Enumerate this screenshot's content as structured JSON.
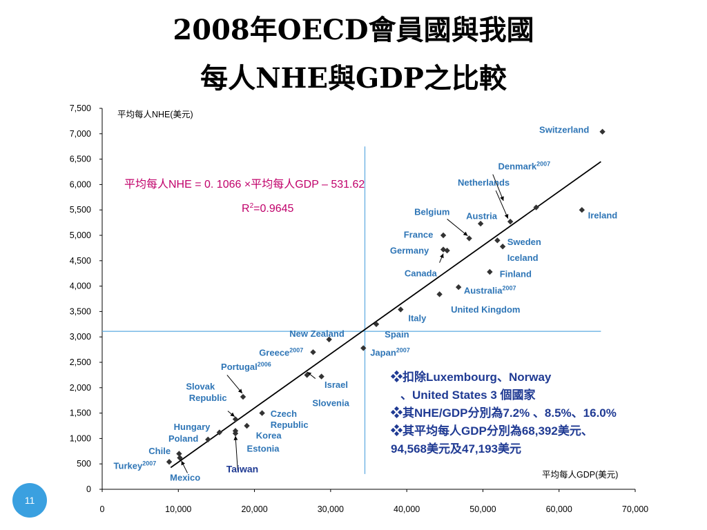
{
  "slide": {
    "title_line1": "2008年OECD會員國與我國",
    "title_line2": "每人NHE與GDP之比較",
    "page_number": "11"
  },
  "chart_data": {
    "type": "scatter",
    "xlabel": "平均每人GDP(美元)",
    "ylabel": "平均每人NHE(美元)",
    "xlim": [
      0,
      70000
    ],
    "ylim": [
      0,
      7500
    ],
    "x_ticks": [
      "0",
      "10,000",
      "20,000",
      "30,000",
      "40,000",
      "50,000",
      "60,000",
      "70,000"
    ],
    "y_ticks": [
      "0",
      "500",
      "1,000",
      "1,500",
      "2,000",
      "2,500",
      "3,000",
      "3,500",
      "4,000",
      "4,500",
      "5,000",
      "5,500",
      "6,000",
      "6,500",
      "7,000",
      "7,500"
    ],
    "x_tick_values": [
      0,
      10000,
      20000,
      30000,
      40000,
      50000,
      60000,
      70000
    ],
    "y_tick_values": [
      0,
      500,
      1000,
      1500,
      2000,
      2500,
      3000,
      3500,
      4000,
      4500,
      5000,
      5500,
      6000,
      6500,
      7000,
      7500
    ],
    "grid": false,
    "regression": {
      "equation": "平均每人NHE = 0. 1066 ×平均每人GDP – 531.62",
      "r2_base": "R",
      "r2_sup": "2",
      "r2_rest": "=0.9645",
      "slope": 0.1066,
      "intercept": -531.62,
      "x_range": [
        9000,
        65500
      ]
    },
    "reference_lines": {
      "x": 34500,
      "y": 3110
    },
    "points": [
      {
        "x": 65700,
        "y": 7040
      },
      {
        "x": 57000,
        "y": 5550
      },
      {
        "x": 63000,
        "y": 5500
      },
      {
        "x": 53600,
        "y": 5270
      },
      {
        "x": 49700,
        "y": 5230
      },
      {
        "x": 48200,
        "y": 4940
      },
      {
        "x": 44800,
        "y": 5000
      },
      {
        "x": 51900,
        "y": 4900
      },
      {
        "x": 52600,
        "y": 4780
      },
      {
        "x": 44800,
        "y": 4720
      },
      {
        "x": 45300,
        "y": 4700
      },
      {
        "x": 50900,
        "y": 4280
      },
      {
        "x": 46800,
        "y": 3980
      },
      {
        "x": 44300,
        "y": 3840
      },
      {
        "x": 39200,
        "y": 3540
      },
      {
        "x": 36000,
        "y": 3250
      },
      {
        "x": 29800,
        "y": 2950
      },
      {
        "x": 34300,
        "y": 2780
      },
      {
        "x": 27700,
        "y": 2700
      },
      {
        "x": 26900,
        "y": 2250
      },
      {
        "x": 28800,
        "y": 2220
      },
      {
        "x": 18500,
        "y": 1820
      },
      {
        "x": 17500,
        "y": 1380
      },
      {
        "x": 21000,
        "y": 1500
      },
      {
        "x": 19000,
        "y": 1250
      },
      {
        "x": 15400,
        "y": 1120
      },
      {
        "x": 17500,
        "y": 1150
      },
      {
        "x": 17500,
        "y": 1100
      },
      {
        "x": 13900,
        "y": 980
      },
      {
        "x": 10100,
        "y": 700
      },
      {
        "x": 10200,
        "y": 620
      },
      {
        "x": 8800,
        "y": 540
      }
    ],
    "labels": [
      {
        "text": "Switzerland",
        "x": 57400,
        "y": 7020
      },
      {
        "text": "Denmark",
        "sup": "2007",
        "x": 52000,
        "y": 6300
      },
      {
        "text": "Netherlands",
        "x": 46700,
        "y": 5980
      },
      {
        "text": "Belgium",
        "x": 41000,
        "y": 5400
      },
      {
        "text": "Austria",
        "x": 47800,
        "y": 5320
      },
      {
        "text": "Ireland",
        "x": 63800,
        "y": 5330
      },
      {
        "text": "France",
        "x": 39600,
        "y": 4950
      },
      {
        "text": "Sweden",
        "x": 53200,
        "y": 4810
      },
      {
        "text": "Germany",
        "x": 37800,
        "y": 4640
      },
      {
        "text": "Iceland",
        "x": 53200,
        "y": 4500
      },
      {
        "text": "Canada",
        "x": 39700,
        "y": 4190
      },
      {
        "text": "Finland",
        "x": 52200,
        "y": 4180
      },
      {
        "text": "Australia",
        "sup": "2007",
        "x": 47500,
        "y": 3850
      },
      {
        "text": "United Kingdom",
        "x": 45800,
        "y": 3480
      },
      {
        "text": "Italy",
        "x": 40200,
        "y": 3310
      },
      {
        "text": "New Zealand",
        "x": 24600,
        "y": 3000
      },
      {
        "text": "Spain",
        "x": 37100,
        "y": 2990
      },
      {
        "text": "Greece",
        "sup": "2007",
        "x": 20600,
        "y": 2630
      },
      {
        "text": "Japan",
        "sup": "2007",
        "x": 35200,
        "y": 2630
      },
      {
        "text": "Portugal",
        "sup": "2006",
        "x": 15600,
        "y": 2350
      },
      {
        "text": "Israel",
        "x": 29200,
        "y": 2000
      },
      {
        "text": "Slovak",
        "x": 11000,
        "y": 1960
      },
      {
        "text": "Republic",
        "x": 11400,
        "y": 1740
      },
      {
        "text": "Slovenia",
        "x": 27600,
        "y": 1640
      },
      {
        "text": "Czech",
        "x": 22100,
        "y": 1430
      },
      {
        "text": "Republic",
        "x": 22100,
        "y": 1210
      },
      {
        "text": "Hungary",
        "x": 9400,
        "y": 1170
      },
      {
        "text": "Korea",
        "x": 20200,
        "y": 1000
      },
      {
        "text": "Poland",
        "x": 8700,
        "y": 940
      },
      {
        "text": "Estonia",
        "x": 19000,
        "y": 740
      },
      {
        "text": "Chile",
        "x": 6100,
        "y": 690
      },
      {
        "text": "Turkey",
        "sup": "2007",
        "x": 1500,
        "y": 400
      }
    ],
    "bottom_labels": [
      {
        "text": "Mexico",
        "x": 8900,
        "y": 170
      }
    ],
    "arrows": [
      {
        "from": [
          51300,
          6200
        ],
        "to": [
          52700,
          5680
        ]
      },
      {
        "from": [
          51700,
          5880
        ],
        "to": [
          53300,
          5330
        ]
      },
      {
        "from": [
          45300,
          5320
        ],
        "to": [
          48000,
          4990
        ]
      },
      {
        "from": [
          44300,
          4460
        ],
        "to": [
          44800,
          4640
        ]
      },
      {
        "from": [
          28000,
          2180
        ],
        "to": [
          26900,
          2310
        ]
      },
      {
        "from": [
          16400,
          2250
        ],
        "to": [
          18400,
          1890
        ]
      },
      {
        "from": [
          16500,
          1540
        ],
        "to": [
          17400,
          1430
        ]
      },
      {
        "from": [
          17800,
          370
        ],
        "to": [
          17500,
          1050
        ]
      },
      {
        "from": [
          11200,
          320
        ],
        "to": [
          10400,
          560
        ]
      }
    ],
    "highlight": {
      "text": "Taiwan",
      "x": 16300,
      "y": 330
    }
  },
  "notes": {
    "line1": "扣除Luxembourg、Norway",
    "line2": "、United States  3 個國家",
    "line3": "其NHE/GDP分別為7.2% 、8.5%、16.0%",
    "line4": "其平均每人GDP分別為68,392美元、",
    "line5": "94,568美元及47,193美元",
    "bullet": "❖"
  },
  "colors": {
    "label": "#2e75b6",
    "dark_label": "#1f3a93",
    "equation": "#c0006a",
    "refline": "#5aa8e0",
    "badge": "#3aa0e0"
  }
}
